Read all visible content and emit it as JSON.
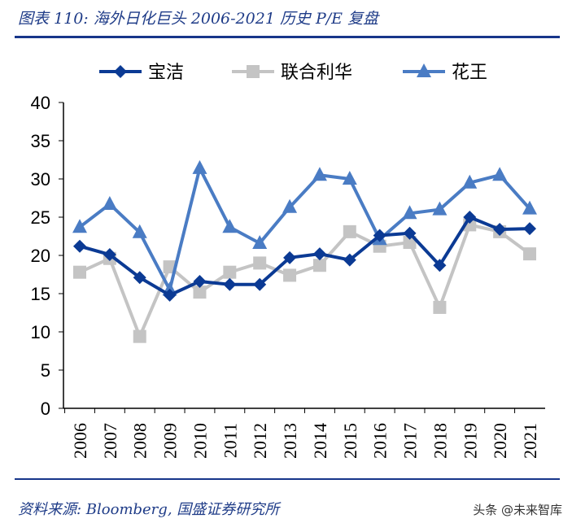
{
  "title": "图表 110:  海外日化巨头 2006-2021 历史 P/E 复盘",
  "source": "资料来源:  Bloomberg,  国盛证券研究所",
  "watermark": "头条 @未来智库",
  "chart_data": {
    "type": "line",
    "title": "海外日化巨头 2006-2021 历史 P/E 复盘",
    "categories": [
      "2006",
      "2007",
      "2008",
      "2009",
      "2010",
      "2011",
      "2012",
      "2013",
      "2014",
      "2015",
      "2016",
      "2017",
      "2018",
      "2019",
      "2020",
      "2021"
    ],
    "ylim": [
      0,
      40
    ],
    "yticks": [
      "0",
      "5",
      "10",
      "15",
      "20",
      "25",
      "30",
      "35",
      "40"
    ],
    "legend_position": "top",
    "series": [
      {
        "name": "宝洁",
        "color": "#0b3a94",
        "marker": "diamond",
        "values": [
          21.2,
          20.1,
          17.1,
          14.8,
          16.6,
          16.2,
          16.2,
          19.7,
          20.2,
          19.4,
          22.6,
          22.9,
          18.7,
          25.0,
          23.4,
          23.5
        ]
      },
      {
        "name": "联合利华",
        "color": "#c4c4c4",
        "marker": "square",
        "values": [
          17.8,
          19.6,
          9.4,
          18.5,
          15.2,
          17.8,
          19.0,
          17.4,
          18.7,
          23.1,
          21.2,
          21.7,
          13.2,
          24.0,
          23.1,
          20.2
        ]
      },
      {
        "name": "花王",
        "color": "#4a7cc4",
        "marker": "triangle",
        "values": [
          23.7,
          26.7,
          23.0,
          15.5,
          31.4,
          23.7,
          21.6,
          26.3,
          30.5,
          30.0,
          22.1,
          25.5,
          26.0,
          29.5,
          30.5,
          26.1
        ]
      }
    ]
  }
}
